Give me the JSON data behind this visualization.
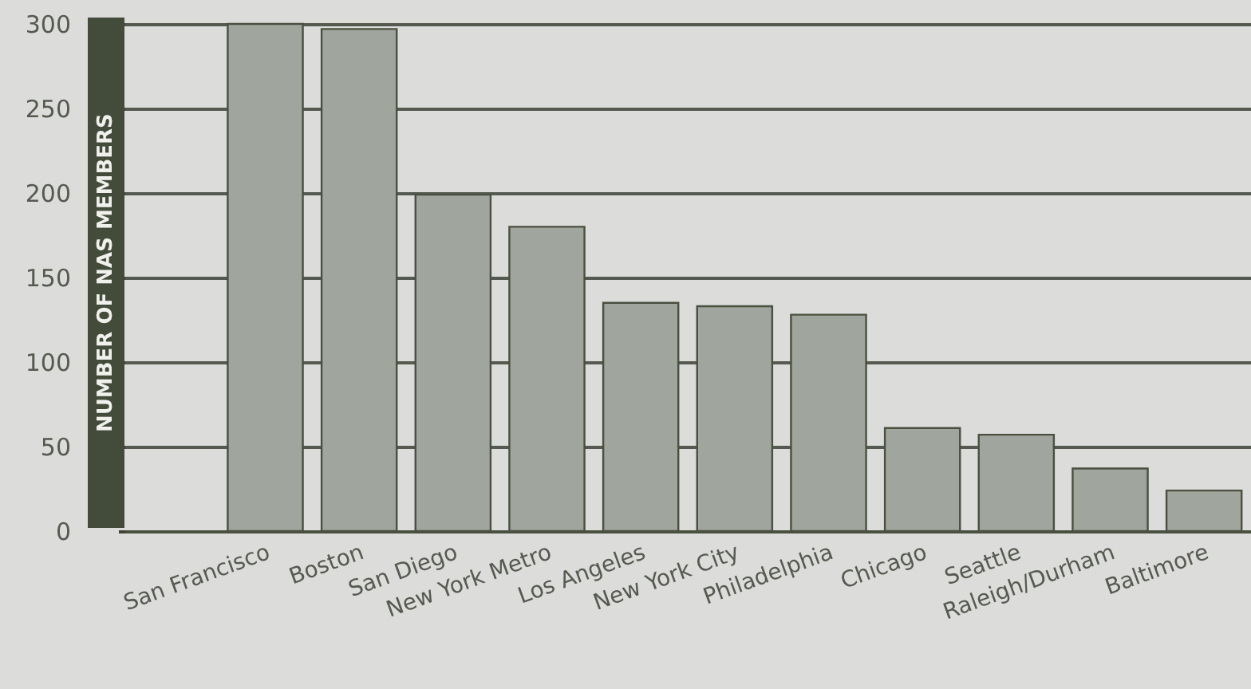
{
  "chart_data": {
    "type": "bar",
    "ylabel": "NUMBER OF NAS MEMBERS",
    "categories": [
      null,
      "San Francisco",
      "Boston",
      "San Diego",
      "New York Metro",
      "Los Angeles",
      "New York City",
      "Philadelphia",
      "Chicago",
      "Seattle",
      "Raleigh/Durham",
      "Baltimore"
    ],
    "values": [
      null,
      300,
      297,
      199,
      180,
      135,
      133,
      128,
      61,
      57,
      37,
      24
    ],
    "color": "#a0a59e",
    "ylim": [
      0,
      300
    ],
    "yticks": [
      0,
      50,
      100,
      150,
      200,
      250,
      300
    ],
    "grid": "y"
  }
}
